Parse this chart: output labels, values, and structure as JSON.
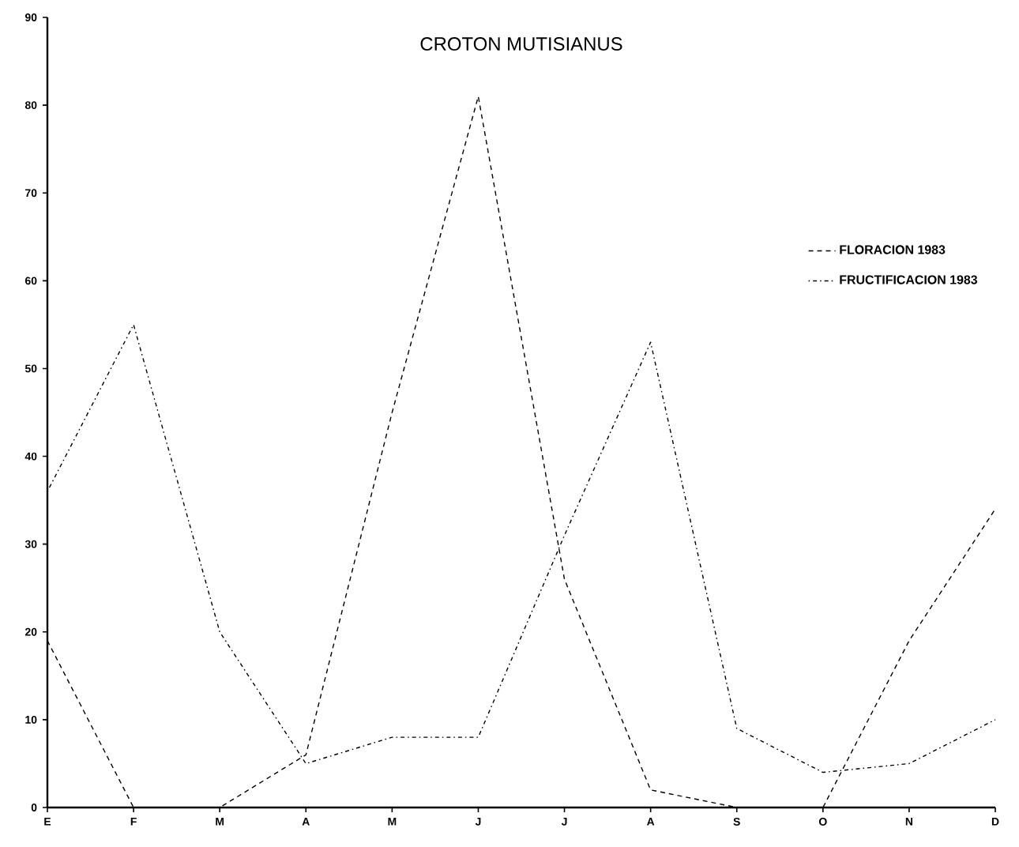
{
  "chart_data": {
    "type": "line",
    "title": "CROTON MUTISIANUS",
    "categories": [
      "E",
      "F",
      "M",
      "A",
      "M",
      "J",
      "J",
      "A",
      "S",
      "O",
      "N",
      "D"
    ],
    "series": [
      {
        "name": "FLORACION 1983",
        "color": "#000000",
        "line_style": "dashed",
        "values": [
          19,
          0,
          0,
          6,
          45,
          81,
          26,
          2,
          0,
          0,
          19,
          34
        ]
      },
      {
        "name": "FRUCTIFICACION 1983",
        "color": "#000000",
        "line_style": "dotted",
        "values": [
          36,
          55,
          20,
          5,
          8,
          8,
          31,
          53,
          9,
          4,
          5,
          10
        ]
      }
    ],
    "ylim": [
      0,
      90
    ],
    "yticks": [
      0,
      10,
      20,
      30,
      40,
      50,
      60,
      70,
      80,
      90
    ],
    "grid": false,
    "legend": "right",
    "marker": "none"
  }
}
